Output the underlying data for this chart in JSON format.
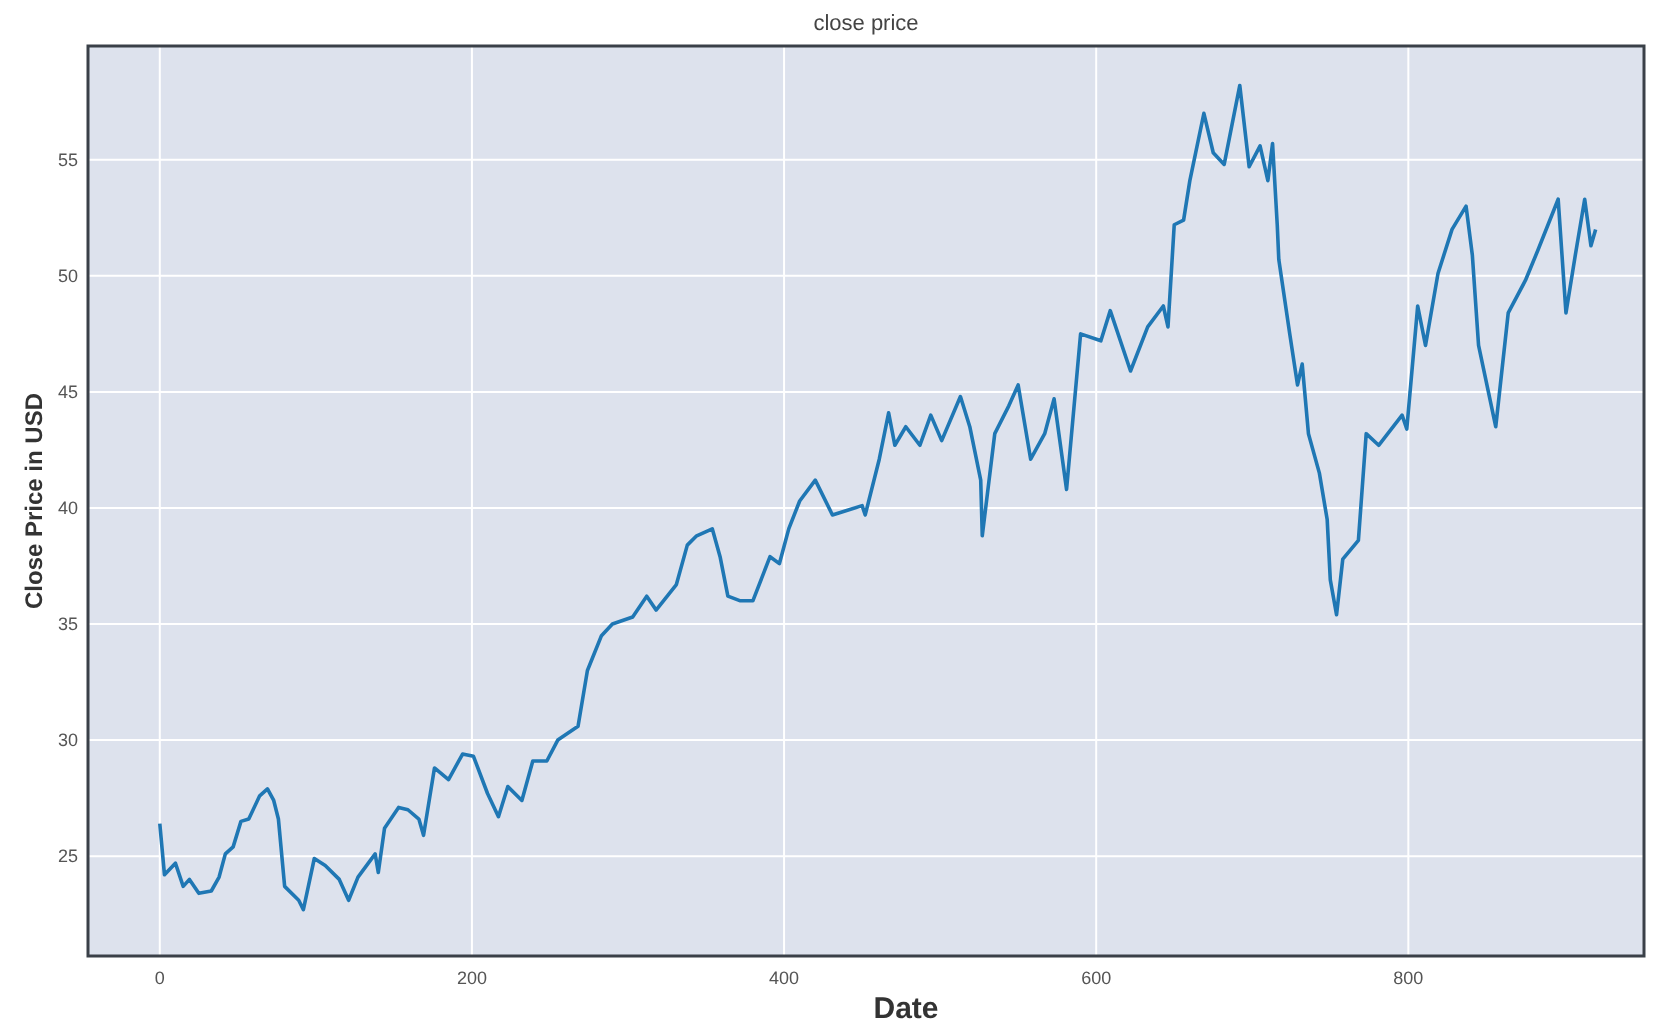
{
  "chart_data": {
    "type": "line",
    "title": "close price",
    "xlabel": "Date",
    "ylabel": "Close Price in USD",
    "xlim": [
      -46,
      951
    ],
    "ylim": [
      20.7,
      59.9
    ],
    "xticks": [
      0,
      200,
      400,
      600,
      800
    ],
    "yticks": [
      25,
      30,
      35,
      40,
      45,
      50,
      55
    ],
    "grid": true,
    "series": [
      {
        "color": "#1f77b4",
        "x": [
          0,
          3,
          10,
          15,
          19,
          25,
          33,
          38,
          42,
          47,
          52,
          57,
          64,
          69,
          73,
          76,
          80,
          89,
          92,
          99,
          106,
          115,
          121,
          127,
          138,
          140,
          144,
          153,
          159,
          166,
          169,
          176,
          185,
          194,
          201,
          210,
          217,
          223,
          232,
          239,
          248,
          255,
          268,
          274,
          283,
          290,
          303,
          312,
          318,
          331,
          338,
          344,
          354,
          359,
          364,
          372,
          380,
          391,
          397,
          403,
          410,
          420,
          431,
          450,
          452,
          461,
          467,
          471,
          478,
          487,
          494,
          501,
          513,
          519,
          526,
          527,
          535,
          544,
          550,
          558,
          567,
          573,
          581,
          590,
          603,
          609,
          622,
          633,
          643,
          646,
          650,
          656,
          660,
          669,
          675,
          682,
          692,
          698,
          705,
          710,
          713,
          716,
          717,
          724,
          729,
          732,
          736,
          743,
          748,
          750,
          754,
          758,
          768,
          773,
          781,
          796,
          799,
          806,
          811,
          819,
          828,
          837,
          841,
          845,
          856,
          864,
          875,
          883,
          896,
          901,
          907,
          913,
          917,
          920
        ],
        "values": [
          26.4,
          24.2,
          24.7,
          23.7,
          24.0,
          23.4,
          23.5,
          24.1,
          25.1,
          25.4,
          26.5,
          26.6,
          27.6,
          27.9,
          27.4,
          26.6,
          23.7,
          23.1,
          22.7,
          24.9,
          24.6,
          24.0,
          23.1,
          24.1,
          25.1,
          24.3,
          26.2,
          27.1,
          27.0,
          26.6,
          25.9,
          28.8,
          28.3,
          29.4,
          29.3,
          27.7,
          26.7,
          28.0,
          27.4,
          29.1,
          29.1,
          30.0,
          30.6,
          33.0,
          34.5,
          35.0,
          35.3,
          36.2,
          35.6,
          36.7,
          38.4,
          38.8,
          39.1,
          37.9,
          36.2,
          36.0,
          36.0,
          37.9,
          37.6,
          39.1,
          40.3,
          41.2,
          39.7,
          40.1,
          39.7,
          42.1,
          44.1,
          42.7,
          43.5,
          42.7,
          44.0,
          42.9,
          44.8,
          43.5,
          41.2,
          38.8,
          43.2,
          44.4,
          45.3,
          42.1,
          43.2,
          44.7,
          40.8,
          47.5,
          47.2,
          48.5,
          45.9,
          47.8,
          48.7,
          47.8,
          52.2,
          52.4,
          54.1,
          57.0,
          55.3,
          54.8,
          58.2,
          54.7,
          55.6,
          54.1,
          55.7,
          52.2,
          50.7,
          47.5,
          45.3,
          46.2,
          43.2,
          41.5,
          39.5,
          36.9,
          35.4,
          37.8,
          38.6,
          43.2,
          42.7,
          44.0,
          43.4,
          48.7,
          47.0,
          50.1,
          52.0,
          53.0,
          50.9,
          47.0,
          43.5,
          48.4,
          49.8,
          51.1,
          53.3,
          48.4,
          50.9,
          53.3,
          51.3,
          52.0
        ]
      }
    ]
  }
}
